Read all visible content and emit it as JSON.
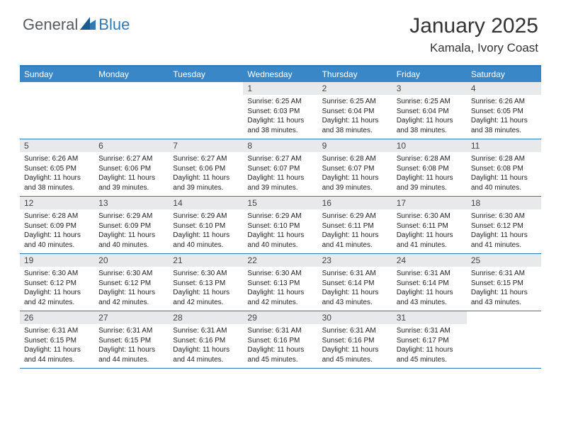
{
  "logo": {
    "text1": "General",
    "text2": "Blue"
  },
  "title": "January 2025",
  "subtitle": "Kamala, Ivory Coast",
  "colors": {
    "header_bg": "#3a87c7",
    "border": "#2d79b9",
    "daynum_bg": "#e8e9ea",
    "text": "#222222",
    "logo_gray": "#555b61",
    "logo_blue": "#2d79b9"
  },
  "dow": [
    "Sunday",
    "Monday",
    "Tuesday",
    "Wednesday",
    "Thursday",
    "Friday",
    "Saturday"
  ],
  "weeks": [
    [
      {
        "n": "",
        "sr": "",
        "ss": "",
        "dl": ""
      },
      {
        "n": "",
        "sr": "",
        "ss": "",
        "dl": ""
      },
      {
        "n": "",
        "sr": "",
        "ss": "",
        "dl": ""
      },
      {
        "n": "1",
        "sr": "6:25 AM",
        "ss": "6:03 PM",
        "dl": "11 hours and 38 minutes."
      },
      {
        "n": "2",
        "sr": "6:25 AM",
        "ss": "6:04 PM",
        "dl": "11 hours and 38 minutes."
      },
      {
        "n": "3",
        "sr": "6:25 AM",
        "ss": "6:04 PM",
        "dl": "11 hours and 38 minutes."
      },
      {
        "n": "4",
        "sr": "6:26 AM",
        "ss": "6:05 PM",
        "dl": "11 hours and 38 minutes."
      }
    ],
    [
      {
        "n": "5",
        "sr": "6:26 AM",
        "ss": "6:05 PM",
        "dl": "11 hours and 38 minutes."
      },
      {
        "n": "6",
        "sr": "6:27 AM",
        "ss": "6:06 PM",
        "dl": "11 hours and 39 minutes."
      },
      {
        "n": "7",
        "sr": "6:27 AM",
        "ss": "6:06 PM",
        "dl": "11 hours and 39 minutes."
      },
      {
        "n": "8",
        "sr": "6:27 AM",
        "ss": "6:07 PM",
        "dl": "11 hours and 39 minutes."
      },
      {
        "n": "9",
        "sr": "6:28 AM",
        "ss": "6:07 PM",
        "dl": "11 hours and 39 minutes."
      },
      {
        "n": "10",
        "sr": "6:28 AM",
        "ss": "6:08 PM",
        "dl": "11 hours and 39 minutes."
      },
      {
        "n": "11",
        "sr": "6:28 AM",
        "ss": "6:08 PM",
        "dl": "11 hours and 40 minutes."
      }
    ],
    [
      {
        "n": "12",
        "sr": "6:28 AM",
        "ss": "6:09 PM",
        "dl": "11 hours and 40 minutes."
      },
      {
        "n": "13",
        "sr": "6:29 AM",
        "ss": "6:09 PM",
        "dl": "11 hours and 40 minutes."
      },
      {
        "n": "14",
        "sr": "6:29 AM",
        "ss": "6:10 PM",
        "dl": "11 hours and 40 minutes."
      },
      {
        "n": "15",
        "sr": "6:29 AM",
        "ss": "6:10 PM",
        "dl": "11 hours and 40 minutes."
      },
      {
        "n": "16",
        "sr": "6:29 AM",
        "ss": "6:11 PM",
        "dl": "11 hours and 41 minutes."
      },
      {
        "n": "17",
        "sr": "6:30 AM",
        "ss": "6:11 PM",
        "dl": "11 hours and 41 minutes."
      },
      {
        "n": "18",
        "sr": "6:30 AM",
        "ss": "6:12 PM",
        "dl": "11 hours and 41 minutes."
      }
    ],
    [
      {
        "n": "19",
        "sr": "6:30 AM",
        "ss": "6:12 PM",
        "dl": "11 hours and 42 minutes."
      },
      {
        "n": "20",
        "sr": "6:30 AM",
        "ss": "6:12 PM",
        "dl": "11 hours and 42 minutes."
      },
      {
        "n": "21",
        "sr": "6:30 AM",
        "ss": "6:13 PM",
        "dl": "11 hours and 42 minutes."
      },
      {
        "n": "22",
        "sr": "6:30 AM",
        "ss": "6:13 PM",
        "dl": "11 hours and 42 minutes."
      },
      {
        "n": "23",
        "sr": "6:31 AM",
        "ss": "6:14 PM",
        "dl": "11 hours and 43 minutes."
      },
      {
        "n": "24",
        "sr": "6:31 AM",
        "ss": "6:14 PM",
        "dl": "11 hours and 43 minutes."
      },
      {
        "n": "25",
        "sr": "6:31 AM",
        "ss": "6:15 PM",
        "dl": "11 hours and 43 minutes."
      }
    ],
    [
      {
        "n": "26",
        "sr": "6:31 AM",
        "ss": "6:15 PM",
        "dl": "11 hours and 44 minutes."
      },
      {
        "n": "27",
        "sr": "6:31 AM",
        "ss": "6:15 PM",
        "dl": "11 hours and 44 minutes."
      },
      {
        "n": "28",
        "sr": "6:31 AM",
        "ss": "6:16 PM",
        "dl": "11 hours and 44 minutes."
      },
      {
        "n": "29",
        "sr": "6:31 AM",
        "ss": "6:16 PM",
        "dl": "11 hours and 45 minutes."
      },
      {
        "n": "30",
        "sr": "6:31 AM",
        "ss": "6:16 PM",
        "dl": "11 hours and 45 minutes."
      },
      {
        "n": "31",
        "sr": "6:31 AM",
        "ss": "6:17 PM",
        "dl": "11 hours and 45 minutes."
      },
      {
        "n": "",
        "sr": "",
        "ss": "",
        "dl": ""
      }
    ]
  ],
  "labels": {
    "sunrise": "Sunrise:",
    "sunset": "Sunset:",
    "daylight": "Daylight:"
  }
}
